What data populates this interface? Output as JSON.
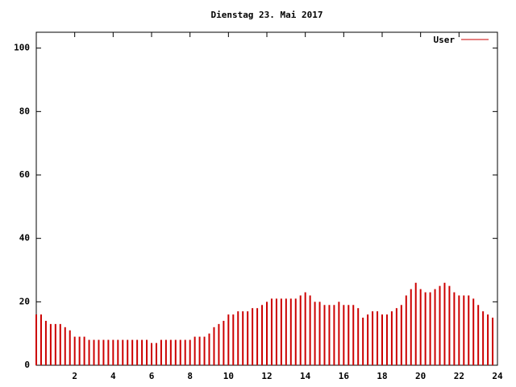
{
  "chart_data": {
    "type": "impulse",
    "title": "Dienstag 23. Mai 2017",
    "series": [
      {
        "name": "User",
        "color": "#cc0000",
        "x": [
          0,
          0.25,
          0.5,
          0.75,
          1,
          1.25,
          1.5,
          1.75,
          2,
          2.25,
          2.5,
          2.75,
          3,
          3.25,
          3.5,
          3.75,
          4,
          4.25,
          4.5,
          4.75,
          5,
          5.25,
          5.5,
          5.75,
          6,
          6.25,
          6.5,
          6.75,
          7,
          7.25,
          7.5,
          7.75,
          8,
          8.25,
          8.5,
          8.75,
          9,
          9.25,
          9.5,
          9.75,
          10,
          10.25,
          10.5,
          10.75,
          11,
          11.25,
          11.5,
          11.75,
          12,
          12.25,
          12.5,
          12.75,
          13,
          13.25,
          13.5,
          13.75,
          14,
          14.25,
          14.5,
          14.75,
          15,
          15.25,
          15.5,
          15.75,
          16,
          16.25,
          16.5,
          16.75,
          17,
          17.25,
          17.5,
          17.75,
          18,
          18.25,
          18.5,
          18.75,
          19,
          19.25,
          19.5,
          19.75,
          20,
          20.25,
          20.5,
          20.75,
          21,
          21.25,
          21.5,
          21.75,
          22,
          22.25,
          22.5,
          22.75,
          23,
          23.25,
          23.5,
          23.75
        ],
        "values": [
          16,
          16,
          14,
          13,
          13,
          13,
          12,
          11,
          9,
          9,
          9,
          8,
          8,
          8,
          8,
          8,
          8,
          8,
          8,
          8,
          8,
          8,
          8,
          8,
          7,
          7,
          8,
          8,
          8,
          8,
          8,
          8,
          8,
          9,
          9,
          9,
          10,
          12,
          13,
          14,
          16,
          16,
          17,
          17,
          17,
          18,
          18,
          19,
          20,
          21,
          21,
          21,
          21,
          21,
          21,
          22,
          23,
          22,
          20,
          20,
          19,
          19,
          19,
          20,
          19,
          19,
          19,
          18,
          15,
          16,
          17,
          17,
          16,
          16,
          17,
          18,
          19,
          22,
          24,
          26,
          24,
          23,
          23,
          24,
          25,
          26,
          25,
          23,
          22,
          22,
          22,
          21,
          19,
          17,
          16,
          15
        ]
      }
    ],
    "xlim": [
      0,
      24
    ],
    "xticks": [
      2,
      4,
      6,
      8,
      10,
      12,
      14,
      16,
      18,
      20,
      22,
      24
    ],
    "ylim": [
      0,
      105
    ],
    "yticks": [
      0,
      20,
      40,
      60,
      80,
      100
    ]
  }
}
